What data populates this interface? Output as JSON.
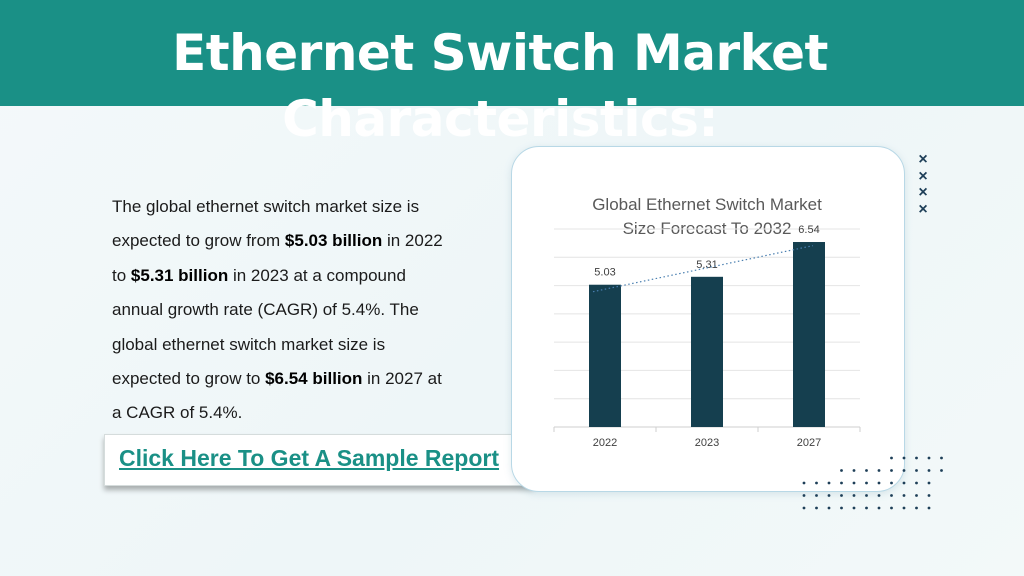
{
  "header": {
    "title": "Ethernet Switch Market Characteristics:"
  },
  "description": {
    "parts": [
      {
        "text": "The global ethernet switch market size is expected to grow from ",
        "bold": false
      },
      {
        "text": "$5.03 billion",
        "bold": true
      },
      {
        "text": " in 2022 to ",
        "bold": false
      },
      {
        "text": "$5.31 billion",
        "bold": true
      },
      {
        "text": " in 2023 at a compound annual growth rate (CAGR) of 5.4%. The global ethernet switch market size is expected to grow to ",
        "bold": false
      },
      {
        "text": "$6.54 billion",
        "bold": true
      },
      {
        "text": " in 2027 at a CAGR of 5.4%.",
        "bold": false
      }
    ]
  },
  "cta": {
    "label": "Click Here To Get A Sample Report"
  },
  "decor": {
    "x_marks": [
      "×",
      "×",
      "×",
      "×"
    ]
  },
  "colors": {
    "header": "#1a9086",
    "bar": "#153f4f",
    "link": "#1a9086",
    "trendline": "#4a7fb0"
  },
  "chart_data": {
    "type": "bar",
    "title": "Global Ethernet Switch Market Size Forecast To 2032",
    "title_lines": [
      "Global Ethernet Switch Market",
      "Size Forecast To 2032"
    ],
    "categories": [
      "2022",
      "2023",
      "2027"
    ],
    "values": [
      5.03,
      5.31,
      6.54
    ],
    "data_labels": [
      "5.03",
      "5.31",
      "6.54"
    ],
    "ylim": [
      0,
      7
    ],
    "grid": true,
    "trendline": "linear, dotted",
    "legend": "none"
  }
}
